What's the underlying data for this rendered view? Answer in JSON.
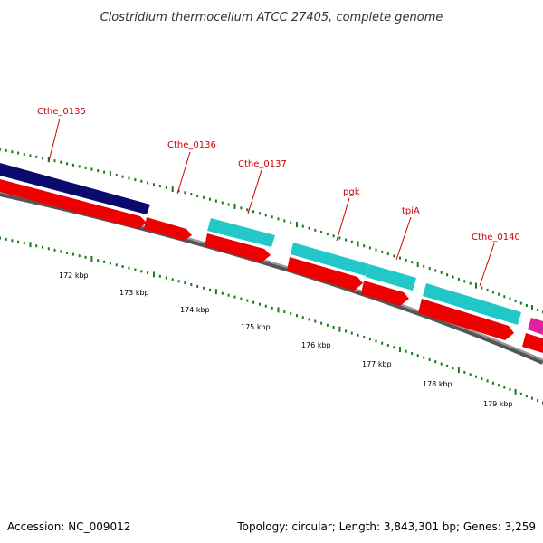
{
  "title": "Clostridium thermocellum ATCC 27405, complete genome",
  "footer": {
    "accession": "Accession: NC_009012",
    "summary": "Topology: circular; Length: 3,843,301 bp; Genes: 3,259"
  },
  "gene_labels": [
    "Cthe_0135",
    "Cthe_0136",
    "Cthe_0137",
    "pgk",
    "tpiA",
    "Cthe_0140"
  ],
  "kbp_labels": [
    "172 kbp",
    "173 kbp",
    "174 kbp",
    "175 kbp",
    "176 kbp",
    "177 kbp",
    "178 kbp",
    "179 kbp"
  ],
  "colors": {
    "backbone": "#777777",
    "cds": "#ee0000",
    "gene_navy": "#0a0a6e",
    "gene_cyan": "#22c8c8",
    "gene_magenta": "#e020a0",
    "tick": "#1a7a1a",
    "label": "#cc0000"
  }
}
